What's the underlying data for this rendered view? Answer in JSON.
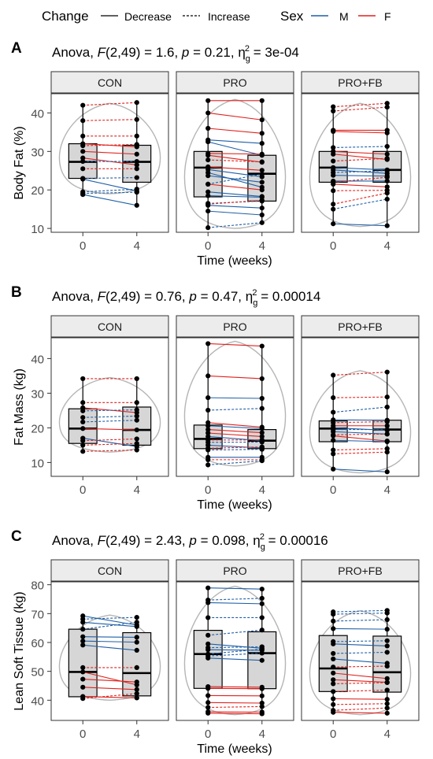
{
  "legend": {
    "change_title": "Change",
    "change_items": [
      "Decrease",
      "Increase"
    ],
    "sex_title": "Sex",
    "sex_items": [
      "M",
      "F"
    ],
    "colors": {
      "M": "#1f5fa6",
      "F": "#e0211d"
    }
  },
  "chart_data": [
    {
      "type": "box-violin-paired",
      "panel_label": "A",
      "stat": {
        "prefix": "Anova, ",
        "F_label": "F",
        "df": "(2,49) = 1.6, ",
        "p_label": "p",
        "p_val": " = 0.21, ",
        "eta": "η",
        "eta_sup": "2",
        "eta_sub": "g",
        "eta_val": " = 3e-04"
      },
      "facets": [
        "CON",
        "PRO",
        "PRO+FB"
      ],
      "xlabel": "Time (weeks)",
      "ylabel": "Body Fat (%)",
      "x_ticks": [
        "0",
        "4"
      ],
      "ylim": [
        9,
        45
      ],
      "y_ticks": [
        10,
        20,
        30,
        40
      ],
      "boxes": [
        [
          {
            "q1": 23,
            "med": 27.3,
            "q3": 32,
            "lo": 19,
            "hi": 42.2
          },
          {
            "q1": 22,
            "med": 27.3,
            "q3": 31.6,
            "lo": 16,
            "hi": 42.7
          }
        ],
        [
          {
            "q1": 18.2,
            "med": 25.8,
            "q3": 30,
            "lo": 10.2,
            "hi": 43.2
          },
          {
            "q1": 17.1,
            "med": 24.2,
            "q3": 29,
            "lo": 11.5,
            "hi": 43.2
          }
        ],
        [
          {
            "q1": 22,
            "med": 25.8,
            "q3": 30,
            "lo": 11.2,
            "hi": 41.6
          },
          {
            "q1": 22,
            "med": 25.2,
            "q3": 30,
            "lo": 10.7,
            "hi": 42.5
          }
        ]
      ],
      "violin_range": [
        [
          19,
          42.5
        ],
        [
          10,
          43.5
        ],
        [
          10.5,
          42.5
        ]
      ],
      "pairs": [
        [
          [
            42,
            42.7,
            "F",
            "inc"
          ],
          [
            38,
            38.3,
            "F",
            "inc"
          ],
          [
            34,
            34,
            "F",
            "inc"
          ],
          [
            32,
            31.2,
            "F",
            "dec"
          ],
          [
            31.5,
            31.8,
            "F",
            "inc"
          ],
          [
            30,
            29.3,
            "F",
            "dec"
          ],
          [
            28.3,
            26.5,
            "F",
            "dec"
          ],
          [
            27.4,
            27.4,
            "M",
            "inc"
          ],
          [
            25.5,
            25.5,
            "F",
            "inc"
          ],
          [
            23,
            23.2,
            "M",
            "inc"
          ],
          [
            22.8,
            19.7,
            "M",
            "dec"
          ],
          [
            19.5,
            20.2,
            "M",
            "inc"
          ],
          [
            19.1,
            19.4,
            "M",
            "inc"
          ],
          [
            18.8,
            16,
            "M",
            "dec"
          ]
        ],
        [
          [
            43.2,
            43.2,
            "F",
            "dec"
          ],
          [
            40,
            38.2,
            "F",
            "dec"
          ],
          [
            36,
            34.7,
            "F",
            "dec"
          ],
          [
            33,
            32.1,
            "M",
            "dec"
          ],
          [
            32.5,
            29,
            "M",
            "dec"
          ],
          [
            29.5,
            29.3,
            "F",
            "dec"
          ],
          [
            29,
            27.2,
            "F",
            "dec"
          ],
          [
            27.8,
            27.3,
            "F",
            "inc"
          ],
          [
            26,
            25.1,
            "F",
            "dec"
          ],
          [
            25.3,
            23.4,
            "M",
            "dec"
          ],
          [
            24.5,
            20.7,
            "M",
            "dec"
          ],
          [
            23.7,
            22,
            "M",
            "dec"
          ],
          [
            21.5,
            20,
            "F",
            "dec"
          ],
          [
            21.5,
            24.1,
            "M",
            "inc"
          ],
          [
            19.5,
            18.3,
            "M",
            "dec"
          ],
          [
            18.5,
            18.1,
            "M",
            "dec"
          ],
          [
            16.5,
            17.1,
            "M",
            "inc"
          ],
          [
            16.3,
            17.3,
            "F",
            "inc"
          ],
          [
            16,
            15.3,
            "M",
            "dec"
          ],
          [
            14.5,
            13.5,
            "M",
            "dec"
          ],
          [
            10.2,
            11.5,
            "M",
            "inc"
          ]
        ],
        [
          [
            41.6,
            42.5,
            "F",
            "inc"
          ],
          [
            40.5,
            41.5,
            "F",
            "inc"
          ],
          [
            35.5,
            35.5,
            "F",
            "dec"
          ],
          [
            35.2,
            34.8,
            "F",
            "dec"
          ],
          [
            31,
            31.3,
            "M",
            "inc"
          ],
          [
            30,
            29.3,
            "F",
            "dec"
          ],
          [
            29.3,
            27.9,
            "F",
            "dec"
          ],
          [
            27.5,
            28.2,
            "F",
            "inc"
          ],
          [
            25.8,
            25.2,
            "M",
            "dec"
          ],
          [
            25.2,
            24.3,
            "M",
            "dec"
          ],
          [
            24.5,
            25,
            "M",
            "inc"
          ],
          [
            23.8,
            23.6,
            "M",
            "dec"
          ],
          [
            22.3,
            22.3,
            "M",
            "dec"
          ],
          [
            22,
            23.3,
            "F",
            "inc"
          ],
          [
            21.5,
            20.8,
            "F",
            "dec"
          ],
          [
            19.8,
            19.9,
            "F",
            "inc"
          ],
          [
            16.3,
            19.2,
            "F",
            "inc"
          ],
          [
            15,
            17.6,
            "M",
            "inc"
          ],
          [
            11.2,
            10.7,
            "M",
            "dec"
          ]
        ]
      ]
    },
    {
      "type": "box-violin-paired",
      "panel_label": "B",
      "stat": {
        "prefix": "Anova, ",
        "F_label": "F",
        "df": "(2,49) = 0.76, ",
        "p_label": "p",
        "p_val": " = 0.47, ",
        "eta": "η",
        "eta_sup": "2",
        "eta_sub": "g",
        "eta_val": " = 0.00014"
      },
      "facets": [
        "CON",
        "PRO",
        "PRO+FB"
      ],
      "xlabel": "Time (weeks)",
      "ylabel": "Fat Mass (kg)",
      "x_ticks": [
        "0",
        "4"
      ],
      "ylim": [
        6,
        46
      ],
      "y_ticks": [
        10,
        20,
        30,
        40
      ],
      "boxes": [
        [
          {
            "q1": 15.5,
            "med": 19.8,
            "q3": 25.5,
            "lo": 13.2,
            "hi": 34.2
          },
          {
            "q1": 15,
            "med": 19.4,
            "q3": 26,
            "lo": 13.6,
            "hi": 34.2
          }
        ],
        [
          {
            "q1": 14,
            "med": 16.8,
            "q3": 20.8,
            "lo": 9.3,
            "hi": 44.3
          },
          {
            "q1": 14,
            "med": 16.3,
            "q3": 19.5,
            "lo": 10.5,
            "hi": 43.6
          }
        ],
        [
          {
            "q1": 16,
            "med": 19.8,
            "q3": 22,
            "lo": 8.1,
            "hi": 35.2
          },
          {
            "q1": 16,
            "med": 19.5,
            "q3": 22.2,
            "lo": 7.3,
            "hi": 36.1
          }
        ]
      ],
      "violin_range": [
        [
          13,
          34.5
        ],
        [
          9,
          45
        ],
        [
          7,
          36.5
        ]
      ],
      "pairs": [
        [
          [
            34.2,
            34.2,
            "F",
            "inc"
          ],
          [
            27.3,
            27.3,
            "F",
            "inc"
          ],
          [
            25.8,
            24.4,
            "F",
            "dec"
          ],
          [
            24.9,
            25.2,
            "M",
            "inc"
          ],
          [
            23,
            23.4,
            "M",
            "inc"
          ],
          [
            21.7,
            22.2,
            "M",
            "inc"
          ],
          [
            19.8,
            19.4,
            "F",
            "dec"
          ],
          [
            17,
            14.6,
            "M",
            "dec"
          ],
          [
            16.3,
            16.8,
            "F",
            "inc"
          ],
          [
            15,
            15.5,
            "F",
            "inc"
          ],
          [
            13.2,
            13.6,
            "F",
            "inc"
          ]
        ],
        [
          [
            44.3,
            43.6,
            "F",
            "dec"
          ],
          [
            35,
            34.2,
            "F",
            "dec"
          ],
          [
            28.7,
            28.5,
            "M",
            "dec"
          ],
          [
            25.1,
            25.6,
            "M",
            "inc"
          ],
          [
            21.5,
            20.2,
            "F",
            "dec"
          ],
          [
            20.6,
            19.8,
            "M",
            "dec"
          ],
          [
            19.5,
            18.6,
            "F",
            "dec"
          ],
          [
            18.5,
            17.5,
            "F",
            "dec"
          ],
          [
            17.5,
            16.3,
            "M",
            "dec"
          ],
          [
            16.5,
            16.5,
            "F",
            "inc"
          ],
          [
            15.8,
            15.9,
            "M",
            "inc"
          ],
          [
            15,
            14.2,
            "M",
            "dec"
          ],
          [
            14.1,
            14.5,
            "F",
            "inc"
          ],
          [
            13.6,
            13.8,
            "M",
            "inc"
          ],
          [
            11.5,
            11.5,
            "M",
            "dec"
          ],
          [
            10.8,
            10.8,
            "F",
            "inc"
          ],
          [
            9.3,
            10.5,
            "M",
            "inc"
          ]
        ],
        [
          [
            35.2,
            36.1,
            "F",
            "inc"
          ],
          [
            28.7,
            28.9,
            "F",
            "inc"
          ],
          [
            24.5,
            26,
            "M",
            "inc"
          ],
          [
            22.3,
            22.2,
            "M",
            "dec"
          ],
          [
            21.5,
            21.8,
            "F",
            "inc"
          ],
          [
            20.6,
            20.6,
            "F",
            "dec"
          ],
          [
            20,
            19.3,
            "M",
            "dec"
          ],
          [
            19.5,
            19.5,
            "M",
            "inc"
          ],
          [
            18.9,
            18.2,
            "M",
            "dec"
          ],
          [
            18,
            18.2,
            "F",
            "inc"
          ],
          [
            17.7,
            16.2,
            "F",
            "dec"
          ],
          [
            16.4,
            16,
            "M",
            "dec"
          ],
          [
            13.6,
            14,
            "F",
            "inc"
          ],
          [
            12.5,
            13,
            "F",
            "inc"
          ],
          [
            8.1,
            7.3,
            "M",
            "dec"
          ]
        ]
      ]
    },
    {
      "type": "box-violin-paired",
      "panel_label": "C",
      "stat": {
        "prefix": "Anova, ",
        "F_label": "F",
        "df": "(2,49) = 2.43, ",
        "p_label": "p",
        "p_val": " = 0.098, ",
        "eta": "η",
        "eta_sup": "2",
        "eta_sub": "g",
        "eta_val": " = 0.00016"
      },
      "facets": [
        "CON",
        "PRO",
        "PRO+FB"
      ],
      "xlabel": "Time (weeks)",
      "ylabel": "Lean Soft Tissue (kg)",
      "x_ticks": [
        "0",
        "4"
      ],
      "ylim": [
        33,
        81
      ],
      "y_ticks": [
        40,
        50,
        60,
        70,
        80
      ],
      "boxes": [
        [
          {
            "q1": 41.2,
            "med": 49.8,
            "q3": 64.6,
            "lo": 40.6,
            "hi": 69.2
          },
          {
            "q1": 41.5,
            "med": 49.4,
            "q3": 63.4,
            "lo": 40.6,
            "hi": 68.7
          }
        ],
        [
          {
            "q1": 44.1,
            "med": 56,
            "q3": 64.2,
            "lo": 35.5,
            "hi": 78.9
          },
          {
            "q1": 44,
            "med": 56.3,
            "q3": 63.7,
            "lo": 35.3,
            "hi": 78.5
          }
        ],
        [
          {
            "q1": 43,
            "med": 51,
            "q3": 62.4,
            "lo": 35.8,
            "hi": 70.6
          },
          {
            "q1": 42.8,
            "med": 49.7,
            "q3": 62.2,
            "lo": 35.5,
            "hi": 71.1
          }
        ]
      ],
      "violin_range": [
        [
          40,
          69.5
        ],
        [
          35,
          79.5
        ],
        [
          35,
          71
        ]
      ],
      "pairs": [
        [
          [
            69.2,
            66,
            "M",
            "dec"
          ],
          [
            68.1,
            68.7,
            "M",
            "inc"
          ],
          [
            67,
            65.5,
            "M",
            "dec"
          ],
          [
            64.6,
            67,
            "M",
            "inc"
          ],
          [
            62,
            61.8,
            "M",
            "dec"
          ],
          [
            60.5,
            60.1,
            "M",
            "dec"
          ],
          [
            59.1,
            57.3,
            "M",
            "dec"
          ],
          [
            51.3,
            51.3,
            "F",
            "inc"
          ],
          [
            49.8,
            45.3,
            "F",
            "dec"
          ],
          [
            47.3,
            46.3,
            "F",
            "dec"
          ],
          [
            44.5,
            43.7,
            "F",
            "dec"
          ],
          [
            41.3,
            40.8,
            "F",
            "dec"
          ],
          [
            40.6,
            42.3,
            "F",
            "inc"
          ]
        ],
        [
          [
            78.9,
            78.5,
            "M",
            "dec"
          ],
          [
            74.7,
            75.3,
            "M",
            "inc"
          ],
          [
            73.8,
            73.4,
            "M",
            "dec"
          ],
          [
            68.6,
            68.6,
            "M",
            "inc"
          ],
          [
            62.5,
            64.3,
            "M",
            "inc"
          ],
          [
            59.5,
            58,
            "M",
            "dec"
          ],
          [
            58.2,
            58.5,
            "M",
            "inc"
          ],
          [
            57.5,
            57.3,
            "M",
            "dec"
          ],
          [
            56,
            57.7,
            "M",
            "inc"
          ],
          [
            55.3,
            56.3,
            "M",
            "inc"
          ],
          [
            54.6,
            53.8,
            "M",
            "dec"
          ],
          [
            44.7,
            44.5,
            "F",
            "dec"
          ],
          [
            44.1,
            44,
            "F",
            "dec"
          ],
          [
            41.6,
            41.5,
            "F",
            "dec"
          ],
          [
            39.2,
            39,
            "F",
            "dec"
          ],
          [
            37.5,
            37.8,
            "F",
            "inc"
          ],
          [
            36,
            35.9,
            "F",
            "dec"
          ],
          [
            35.5,
            35.3,
            "F",
            "dec"
          ]
        ],
        [
          [
            70.6,
            71.1,
            "M",
            "inc"
          ],
          [
            69.8,
            70.2,
            "M",
            "inc"
          ],
          [
            67.4,
            67.9,
            "M",
            "inc"
          ],
          [
            64.8,
            64.6,
            "M",
            "dec"
          ],
          [
            60.3,
            60.6,
            "M",
            "inc"
          ],
          [
            59.5,
            58.8,
            "M",
            "dec"
          ],
          [
            56.2,
            56.6,
            "M",
            "inc"
          ],
          [
            54.3,
            52.8,
            "M",
            "dec"
          ],
          [
            51.5,
            51.8,
            "F",
            "inc"
          ],
          [
            49.4,
            47.5,
            "F",
            "dec"
          ],
          [
            47.1,
            46.2,
            "F",
            "dec"
          ],
          [
            45.7,
            46.1,
            "F",
            "inc"
          ],
          [
            43,
            43.5,
            "F",
            "inc"
          ],
          [
            40.5,
            40.3,
            "F",
            "dec"
          ],
          [
            38.5,
            38.8,
            "F",
            "inc"
          ],
          [
            36.5,
            37.3,
            "F",
            "inc"
          ],
          [
            35.8,
            35.5,
            "F",
            "dec"
          ]
        ]
      ]
    }
  ]
}
